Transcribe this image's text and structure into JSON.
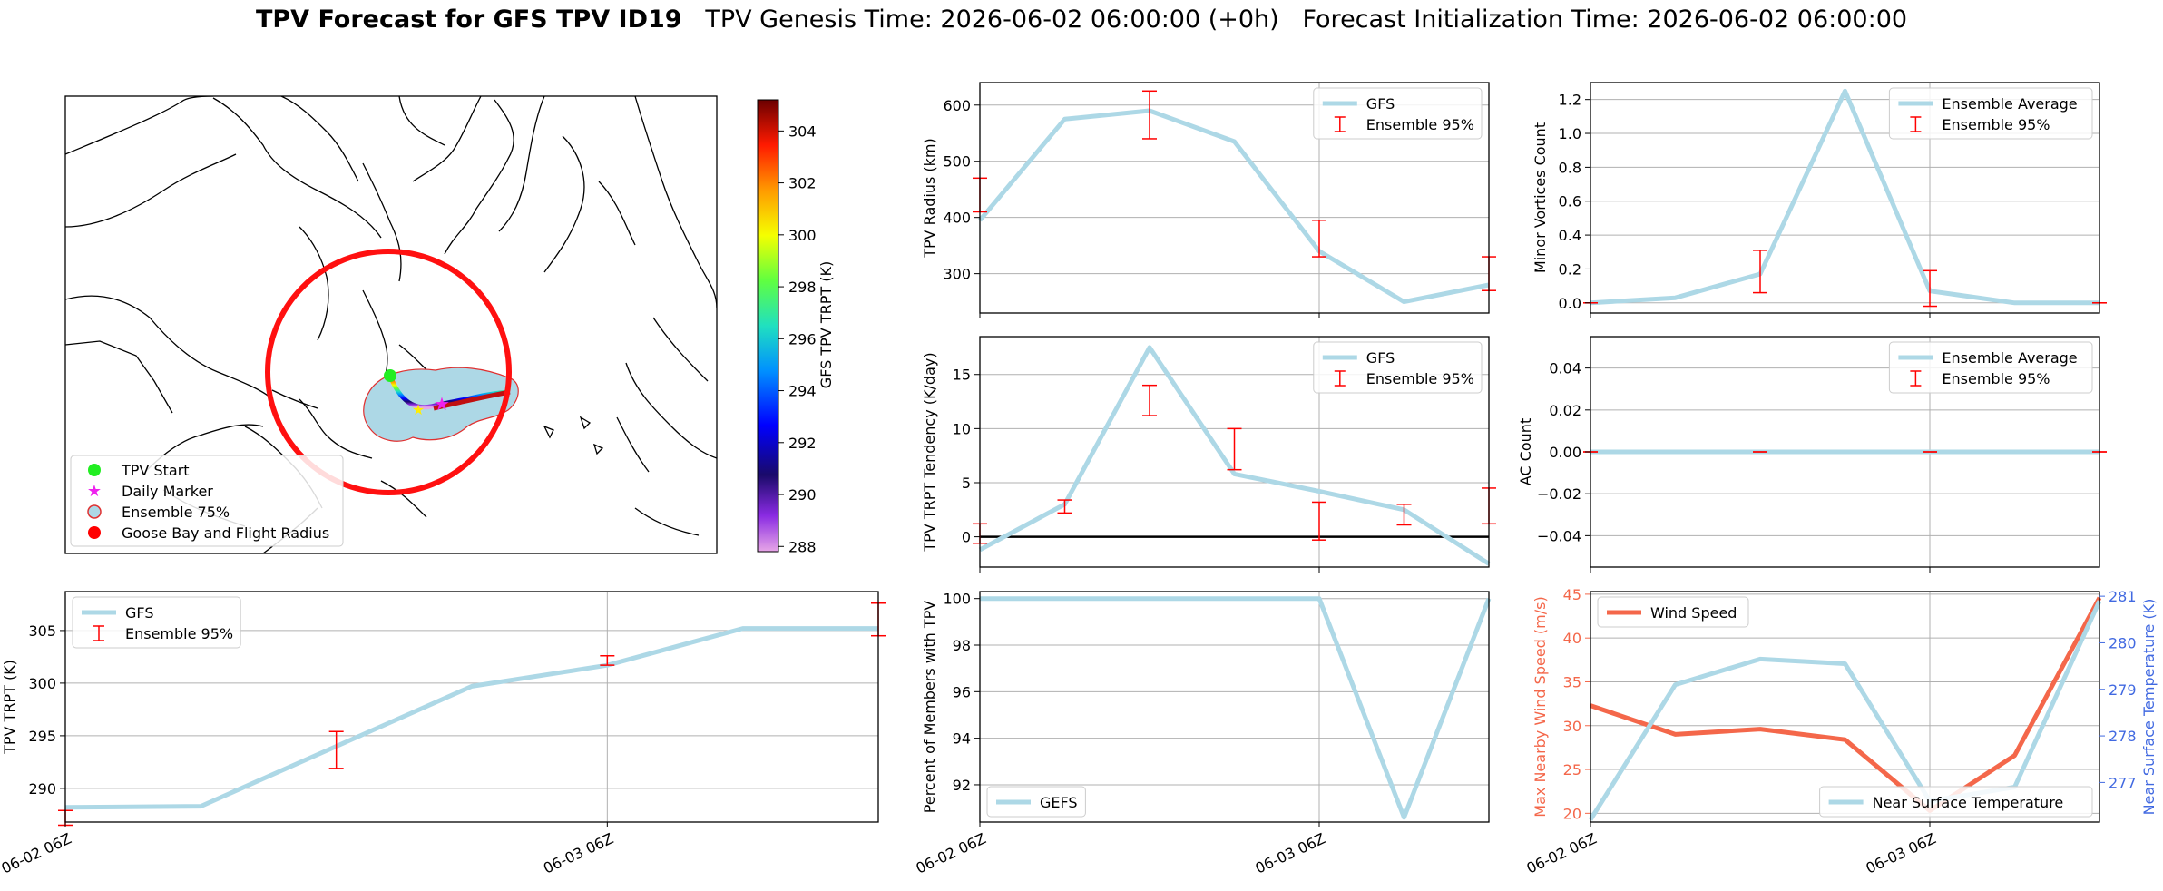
{
  "figure": {
    "title_bold": "TPV Forecast for GFS TPV ID19",
    "title_genesis": "TPV Genesis Time: 2026-06-02 06:00:00 (+0h)",
    "title_init": "Forecast Initialization Time: 2026-06-02 06:00:00"
  },
  "colors": {
    "gfs_line": "#add8e6",
    "errorbar": "#ff0000",
    "wind": "#f4674a",
    "temp_axis": "#4169e1",
    "circle": "#ff1010"
  },
  "chart_data": [
    {
      "id": "map",
      "type": "map",
      "legend": [
        "TPV Start",
        "Daily Marker",
        "Ensemble 75%",
        "Goose Bay and Flight Radius"
      ],
      "legend_placement": "lower-left",
      "colorbar": {
        "label": "GFS TPV TRPT (K)",
        "range": [
          287.8,
          305.2
        ],
        "ticks": [
          288,
          290,
          292,
          294,
          296,
          298,
          300,
          302,
          304
        ]
      }
    },
    {
      "id": "radius",
      "type": "line",
      "x": [
        "2026-06-02 06Z",
        "2026-06-02 12Z",
        "2026-06-02 18Z",
        "2026-06-03 00Z",
        "2026-06-03 06Z",
        "2026-06-03 12Z",
        "2026-06-03 18Z"
      ],
      "series": [
        {
          "name": "GFS",
          "values": [
            395,
            575,
            590,
            535,
            340,
            250,
            280
          ]
        }
      ],
      "errorbars": {
        "name": "Ensemble 95%",
        "x": [
          "2026-06-02 06Z",
          "2026-06-02 18Z",
          "2026-06-03 06Z",
          "2026-06-03 18Z"
        ],
        "low": [
          410,
          540,
          330,
          270
        ],
        "high": [
          470,
          625,
          395,
          330
        ]
      },
      "ylabel": "TPV Radius (km)",
      "ylim": [
        230,
        640
      ],
      "yticks": [
        300,
        400,
        500,
        600
      ],
      "legend": "upper-right",
      "grid": true
    },
    {
      "id": "minor",
      "type": "line",
      "x": [
        "2026-06-02 06Z",
        "2026-06-02 12Z",
        "2026-06-02 18Z",
        "2026-06-03 00Z",
        "2026-06-03 06Z",
        "2026-06-03 12Z",
        "2026-06-03 18Z"
      ],
      "series": [
        {
          "name": "Ensemble Average",
          "values": [
            0.0,
            0.03,
            0.17,
            1.25,
            0.07,
            0.0,
            0.0
          ]
        }
      ],
      "errorbars": {
        "name": "Ensemble 95%",
        "x": [
          "2026-06-02 06Z",
          "2026-06-02 18Z",
          "2026-06-03 06Z",
          "2026-06-03 18Z"
        ],
        "low": [
          0,
          0.06,
          -0.02,
          0
        ],
        "high": [
          0,
          0.31,
          0.19,
          0
        ]
      },
      "ylabel": "Minor Vortices Count",
      "ylim": [
        -0.06,
        1.3
      ],
      "yticks": [
        0.0,
        0.2,
        0.4,
        0.6,
        0.8,
        1.0,
        1.2
      ],
      "legend": "upper-right",
      "grid": true
    },
    {
      "id": "tendency",
      "type": "line",
      "x": [
        "2026-06-02 06Z",
        "2026-06-02 12Z",
        "2026-06-02 18Z",
        "2026-06-03 00Z",
        "2026-06-03 06Z",
        "2026-06-03 12Z",
        "2026-06-03 18Z"
      ],
      "series": [
        {
          "name": "GFS",
          "values": [
            -1.2,
            3.0,
            17.5,
            5.8,
            4.2,
            2.5,
            -2.5
          ]
        }
      ],
      "errorbars": {
        "name": "Ensemble 95%",
        "x": [
          "2026-06-02 06Z",
          "2026-06-02 12Z",
          "2026-06-02 18Z",
          "2026-06-03 00Z",
          "2026-06-03 06Z",
          "2026-06-03 12Z",
          "2026-06-03 18Z"
        ],
        "low": [
          -0.6,
          2.2,
          11.2,
          6.2,
          -0.3,
          1.1,
          1.2
        ],
        "high": [
          1.2,
          3.4,
          14.0,
          10.0,
          3.2,
          3.0,
          4.5
        ]
      },
      "zero_line": true,
      "ylabel": "TPV TRPT Tendency (K/day)",
      "ylim": [
        -2.8,
        18.5
      ],
      "yticks": [
        0,
        5,
        10,
        15
      ],
      "legend": "upper-right",
      "grid": true
    },
    {
      "id": "ac",
      "type": "line",
      "x": [
        "2026-06-02 06Z",
        "2026-06-02 12Z",
        "2026-06-02 18Z",
        "2026-06-03 00Z",
        "2026-06-03 06Z",
        "2026-06-03 12Z",
        "2026-06-03 18Z"
      ],
      "series": [
        {
          "name": "Ensemble Average",
          "values": [
            0,
            0,
            0,
            0,
            0,
            0,
            0
          ]
        }
      ],
      "errorbars": {
        "name": "Ensemble 95%",
        "x": [
          "2026-06-02 06Z",
          "2026-06-02 18Z",
          "2026-06-03 06Z",
          "2026-06-03 18Z"
        ],
        "low": [
          0,
          0,
          0,
          0
        ],
        "high": [
          0,
          0,
          0,
          0
        ]
      },
      "ylabel": "AC Count",
      "ylim": [
        -0.055,
        0.055
      ],
      "yticks": [
        -0.04,
        -0.02,
        0.0,
        0.02,
        0.04
      ],
      "legend": "upper-right",
      "grid": true
    },
    {
      "id": "trpt",
      "type": "line",
      "x": [
        "2026-06-02 06Z",
        "2026-06-02 12Z",
        "2026-06-02 18Z",
        "2026-06-03 00Z",
        "2026-06-03 06Z",
        "2026-06-03 12Z",
        "2026-06-03 18Z"
      ],
      "series": [
        {
          "name": "GFS",
          "values": [
            288.2,
            288.3,
            294.0,
            299.7,
            301.7,
            305.2,
            305.2
          ]
        }
      ],
      "errorbars": {
        "name": "Ensemble 95%",
        "x": [
          "2026-06-02 06Z",
          "2026-06-02 18Z",
          "2026-06-03 06Z",
          "2026-06-03 18Z"
        ],
        "low": [
          286.5,
          291.9,
          301.7,
          304.5
        ],
        "high": [
          287.9,
          295.4,
          302.6,
          307.6
        ]
      },
      "ylabel": "TPV TRPT (K)",
      "ylim": [
        286.8,
        308.7
      ],
      "yticks": [
        290,
        295,
        300,
        305
      ],
      "xticks": [
        "06-02 06Z",
        "06-03 06Z"
      ],
      "legend": "upper-left",
      "grid": true
    },
    {
      "id": "percent",
      "type": "line",
      "x": [
        "2026-06-02 06Z",
        "2026-06-02 12Z",
        "2026-06-02 18Z",
        "2026-06-03 00Z",
        "2026-06-03 06Z",
        "2026-06-03 12Z",
        "2026-06-03 18Z"
      ],
      "series": [
        {
          "name": "GEFS",
          "values": [
            100,
            100,
            100,
            100,
            100,
            90.6,
            100
          ]
        }
      ],
      "ylabel": "Percent of Members with TPV",
      "ylim": [
        90.4,
        100.3
      ],
      "yticks": [
        92,
        94,
        96,
        98,
        100
      ],
      "xticks": [
        "06-02 06Z",
        "06-03 06Z"
      ],
      "legend": "lower-left",
      "grid": true
    },
    {
      "id": "wind_temp",
      "type": "line",
      "x": [
        "2026-06-02 06Z",
        "2026-06-02 12Z",
        "2026-06-02 18Z",
        "2026-06-03 00Z",
        "2026-06-03 06Z",
        "2026-06-03 12Z",
        "2026-06-03 18Z"
      ],
      "series": [
        {
          "name": "Wind Speed",
          "values": [
            32.3,
            29.0,
            29.6,
            28.4,
            20.3,
            26.6,
            44.6
          ],
          "axis": "left"
        },
        {
          "name": "Near Surface Temperature",
          "values": [
            276.2,
            279.1,
            279.65,
            279.55,
            276.6,
            276.9,
            280.9
          ],
          "axis": "right"
        }
      ],
      "ylabel": "Max Nearby Wind Speed (m/s)",
      "ylabel2": "Near Surface Temperature (K)",
      "ylim": [
        19,
        45.3
      ],
      "ylim2": [
        276.15,
        281.1
      ],
      "yticks": [
        20,
        25,
        30,
        35,
        40,
        45
      ],
      "yticks2": [
        277,
        278,
        279,
        280,
        281
      ],
      "xticks": [
        "06-02 06Z",
        "06-03 06Z"
      ],
      "legend": [
        "upper-left",
        "lower-right"
      ],
      "grid": true
    }
  ]
}
